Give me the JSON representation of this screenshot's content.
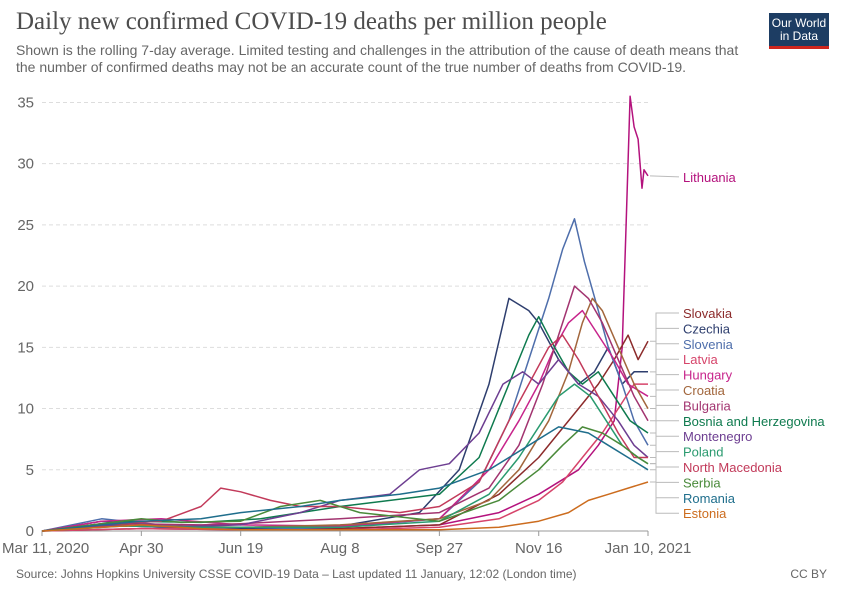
{
  "header": {
    "title": "Daily new confirmed COVID-19 deaths per million people",
    "subtitle": "Shown is the rolling 7-day average. Limited testing and challenges in the attribution of the cause of death means that the number of confirmed deaths may not be an accurate count of the true number of deaths from COVID-19."
  },
  "logo": {
    "line1": "Our World",
    "line2": "in Data",
    "bg": "#1d3d63",
    "accent": "#ce261e"
  },
  "footer": {
    "source": "Source: Johns Hopkins University CSSE COVID-19 Data – Last updated 11 January, 12:02 (London time)",
    "license": "CC BY"
  },
  "chart_data": {
    "type": "line",
    "title": "Daily new confirmed COVID-19 deaths per million people",
    "xlabel": "",
    "ylabel": "",
    "ylim": [
      0,
      36
    ],
    "y_ticks": [
      0,
      5,
      10,
      15,
      20,
      25,
      30,
      35
    ],
    "x_ticks": [
      {
        "label": "Mar 11, 2020",
        "day": 0
      },
      {
        "label": "Apr 30",
        "day": 50
      },
      {
        "label": "Jun 19",
        "day": 100
      },
      {
        "label": "Aug 8",
        "day": 150
      },
      {
        "label": "Sep 27",
        "day": 200
      },
      {
        "label": "Nov 16",
        "day": 250
      },
      {
        "label": "Jan 10, 2021",
        "day": 305
      }
    ],
    "xlim": [
      0,
      305
    ],
    "grid": true,
    "legend": "right",
    "series": [
      {
        "name": "Lithuania",
        "color": "#b4127d",
        "points": [
          [
            0,
            0
          ],
          [
            40,
            0.5
          ],
          [
            60,
            0.3
          ],
          [
            100,
            0.2
          ],
          [
            150,
            0.2
          ],
          [
            200,
            0.5
          ],
          [
            230,
            1.5
          ],
          [
            250,
            3
          ],
          [
            270,
            5
          ],
          [
            280,
            7
          ],
          [
            288,
            9
          ],
          [
            292,
            15
          ],
          [
            294,
            25
          ],
          [
            296,
            35.5
          ],
          [
            298,
            33
          ],
          [
            300,
            32
          ],
          [
            302,
            28
          ],
          [
            303,
            29.5
          ],
          [
            305,
            29
          ]
        ]
      },
      {
        "name": "Slovakia",
        "color": "#8c2b2b",
        "points": [
          [
            0,
            0
          ],
          [
            50,
            0.2
          ],
          [
            100,
            0.1
          ],
          [
            150,
            0.2
          ],
          [
            200,
            0.5
          ],
          [
            230,
            3
          ],
          [
            250,
            6
          ],
          [
            260,
            8
          ],
          [
            270,
            10
          ],
          [
            280,
            12
          ],
          [
            288,
            14
          ],
          [
            295,
            16
          ],
          [
            300,
            14
          ],
          [
            305,
            15.5
          ]
        ]
      },
      {
        "name": "Czechia",
        "color": "#2e3e6e",
        "points": [
          [
            0,
            0
          ],
          [
            30,
            0.8
          ],
          [
            60,
            0.5
          ],
          [
            100,
            0.2
          ],
          [
            150,
            0.4
          ],
          [
            190,
            1.5
          ],
          [
            210,
            5
          ],
          [
            225,
            12
          ],
          [
            235,
            19
          ],
          [
            240,
            18.5
          ],
          [
            245,
            18
          ],
          [
            250,
            17
          ],
          [
            260,
            14
          ],
          [
            270,
            12
          ],
          [
            278,
            13
          ],
          [
            285,
            15
          ],
          [
            292,
            12
          ],
          [
            298,
            13
          ],
          [
            305,
            13
          ]
        ]
      },
      {
        "name": "Slovenia",
        "color": "#4e6eab",
        "points": [
          [
            0,
            0
          ],
          [
            30,
            1
          ],
          [
            60,
            0.5
          ],
          [
            100,
            0.1
          ],
          [
            150,
            0.3
          ],
          [
            200,
            1
          ],
          [
            220,
            4
          ],
          [
            235,
            9
          ],
          [
            245,
            14
          ],
          [
            255,
            19
          ],
          [
            262,
            23
          ],
          [
            268,
            25.5
          ],
          [
            273,
            22
          ],
          [
            280,
            18
          ],
          [
            285,
            15
          ],
          [
            292,
            12
          ],
          [
            298,
            9
          ],
          [
            305,
            7
          ]
        ]
      },
      {
        "name": "Latvia",
        "color": "#d6446a",
        "points": [
          [
            0,
            0
          ],
          [
            50,
            0.2
          ],
          [
            100,
            0.1
          ],
          [
            150,
            0.1
          ],
          [
            200,
            0.3
          ],
          [
            230,
            1
          ],
          [
            250,
            2.5
          ],
          [
            262,
            4
          ],
          [
            272,
            6
          ],
          [
            282,
            8
          ],
          [
            290,
            10
          ],
          [
            298,
            12
          ],
          [
            305,
            12
          ]
        ]
      },
      {
        "name": "Hungary",
        "color": "#c7248b",
        "points": [
          [
            0,
            0
          ],
          [
            30,
            0.8
          ],
          [
            60,
            1
          ],
          [
            100,
            0.5
          ],
          [
            150,
            0.4
          ],
          [
            200,
            1
          ],
          [
            225,
            5
          ],
          [
            240,
            9
          ],
          [
            250,
            12
          ],
          [
            258,
            15
          ],
          [
            265,
            17
          ],
          [
            272,
            18
          ],
          [
            280,
            16
          ],
          [
            288,
            14
          ],
          [
            295,
            12
          ],
          [
            305,
            11
          ]
        ]
      },
      {
        "name": "Croatia",
        "color": "#a2663c",
        "points": [
          [
            0,
            0
          ],
          [
            30,
            0.5
          ],
          [
            60,
            0.4
          ],
          [
            100,
            0.3
          ],
          [
            150,
            0.5
          ],
          [
            200,
            1
          ],
          [
            225,
            2.5
          ],
          [
            240,
            5
          ],
          [
            255,
            9
          ],
          [
            265,
            13
          ],
          [
            272,
            17
          ],
          [
            277,
            19
          ],
          [
            282,
            18
          ],
          [
            290,
            15
          ],
          [
            298,
            12
          ],
          [
            305,
            10
          ]
        ]
      },
      {
        "name": "Bulgaria",
        "color": "#a23470",
        "points": [
          [
            0,
            0
          ],
          [
            40,
            0.6
          ],
          [
            80,
            0.5
          ],
          [
            100,
            0.6
          ],
          [
            150,
            1
          ],
          [
            200,
            1.5
          ],
          [
            225,
            3.5
          ],
          [
            240,
            7
          ],
          [
            252,
            12
          ],
          [
            260,
            16
          ],
          [
            268,
            20
          ],
          [
            275,
            19
          ],
          [
            282,
            17
          ],
          [
            290,
            14
          ],
          [
            298,
            11
          ],
          [
            305,
            9
          ]
        ]
      },
      {
        "name": "Bosnia and Herzegovina",
        "color": "#0e7a4e",
        "points": [
          [
            0,
            0
          ],
          [
            40,
            0.8
          ],
          [
            80,
            0.7
          ],
          [
            110,
            1
          ],
          [
            150,
            2
          ],
          [
            200,
            3
          ],
          [
            220,
            6
          ],
          [
            235,
            12
          ],
          [
            245,
            16
          ],
          [
            250,
            17.5
          ],
          [
            258,
            15
          ],
          [
            265,
            13
          ],
          [
            272,
            12
          ],
          [
            280,
            13
          ],
          [
            288,
            11
          ],
          [
            296,
            9
          ],
          [
            305,
            8
          ]
        ]
      },
      {
        "name": "Montenegro",
        "color": "#6d3e91",
        "points": [
          [
            0,
            0
          ],
          [
            30,
            0.5
          ],
          [
            60,
            0.3
          ],
          [
            100,
            0.5
          ],
          [
            130,
            1.5
          ],
          [
            150,
            2.5
          ],
          [
            175,
            3
          ],
          [
            190,
            5
          ],
          [
            205,
            5.5
          ],
          [
            220,
            8
          ],
          [
            232,
            12
          ],
          [
            242,
            13
          ],
          [
            250,
            12
          ],
          [
            260,
            14
          ],
          [
            270,
            12
          ],
          [
            280,
            11
          ],
          [
            290,
            9
          ],
          [
            298,
            7
          ],
          [
            305,
            6
          ]
        ]
      },
      {
        "name": "Poland",
        "color": "#2a9a6f",
        "points": [
          [
            0,
            0
          ],
          [
            40,
            0.4
          ],
          [
            80,
            0.3
          ],
          [
            100,
            0.3
          ],
          [
            150,
            0.3
          ],
          [
            200,
            0.8
          ],
          [
            225,
            3
          ],
          [
            240,
            6
          ],
          [
            252,
            9
          ],
          [
            260,
            11
          ],
          [
            268,
            12
          ],
          [
            276,
            11
          ],
          [
            284,
            9
          ],
          [
            292,
            7
          ],
          [
            300,
            6
          ],
          [
            305,
            5.5
          ]
        ]
      },
      {
        "name": "North Macedonia",
        "color": "#c23a5a",
        "points": [
          [
            0,
            0
          ],
          [
            30,
            0.6
          ],
          [
            60,
            0.8
          ],
          [
            80,
            2
          ],
          [
            90,
            3.5
          ],
          [
            100,
            3.2
          ],
          [
            115,
            2.5
          ],
          [
            130,
            2
          ],
          [
            150,
            2
          ],
          [
            180,
            1.5
          ],
          [
            200,
            2
          ],
          [
            220,
            4
          ],
          [
            235,
            9
          ],
          [
            245,
            12
          ],
          [
            255,
            15
          ],
          [
            262,
            16
          ],
          [
            270,
            14
          ],
          [
            280,
            11
          ],
          [
            290,
            8
          ],
          [
            298,
            6
          ],
          [
            305,
            6
          ]
        ]
      },
      {
        "name": "Serbia",
        "color": "#4a8a3a",
        "points": [
          [
            0,
            0
          ],
          [
            30,
            0.6
          ],
          [
            50,
            1
          ],
          [
            70,
            0.7
          ],
          [
            100,
            0.8
          ],
          [
            120,
            2
          ],
          [
            140,
            2.5
          ],
          [
            160,
            1.5
          ],
          [
            200,
            0.8
          ],
          [
            230,
            2.5
          ],
          [
            250,
            5
          ],
          [
            262,
            7
          ],
          [
            272,
            8.5
          ],
          [
            282,
            8
          ],
          [
            292,
            7
          ],
          [
            300,
            6
          ],
          [
            305,
            5.5
          ]
        ]
      },
      {
        "name": "Romania",
        "color": "#1f6e8c",
        "points": [
          [
            0,
            0
          ],
          [
            30,
            0.5
          ],
          [
            50,
            0.8
          ],
          [
            80,
            1
          ],
          [
            100,
            1.5
          ],
          [
            130,
            2
          ],
          [
            150,
            2.5
          ],
          [
            180,
            3
          ],
          [
            200,
            3.5
          ],
          [
            225,
            5
          ],
          [
            245,
            7
          ],
          [
            260,
            8.5
          ],
          [
            275,
            8
          ],
          [
            285,
            7
          ],
          [
            295,
            6
          ],
          [
            305,
            5
          ]
        ]
      },
      {
        "name": "Estonia",
        "color": "#cc6c1e",
        "points": [
          [
            0,
            0
          ],
          [
            30,
            0.3
          ],
          [
            50,
            0.5
          ],
          [
            80,
            0.2
          ],
          [
            100,
            0.1
          ],
          [
            150,
            0.1
          ],
          [
            200,
            0.1
          ],
          [
            230,
            0.3
          ],
          [
            250,
            0.8
          ],
          [
            265,
            1.5
          ],
          [
            275,
            2.5
          ],
          [
            285,
            3
          ],
          [
            295,
            3.5
          ],
          [
            305,
            4
          ]
        ]
      }
    ]
  }
}
